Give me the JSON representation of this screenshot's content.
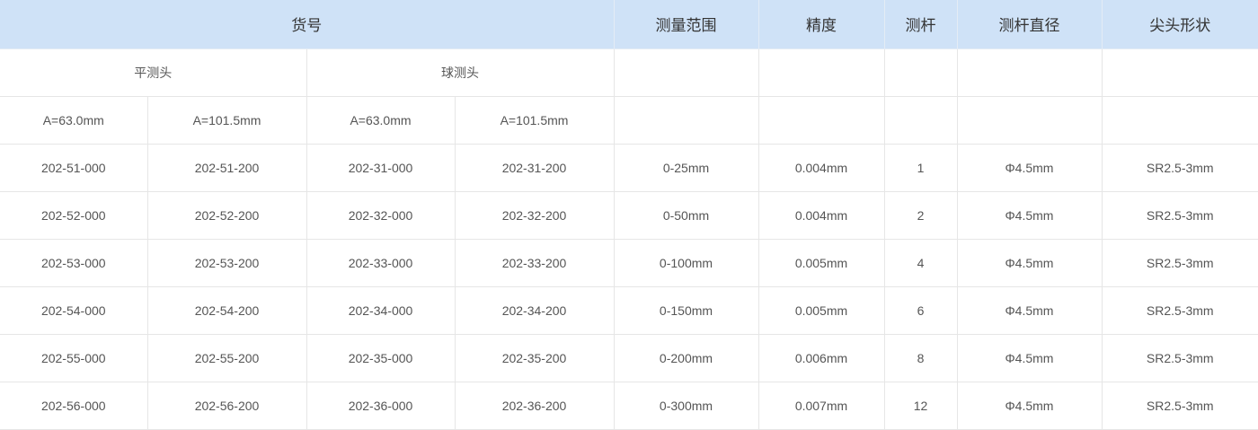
{
  "header": [
    "货号",
    "测量范围",
    "精度",
    "测杆",
    "测杆直径",
    "尖头形状"
  ],
  "subheader": {
    "flat_head": "平测头",
    "ball_head": "球测头"
  },
  "length_labels": [
    "A=63.0mm",
    "A=101.5mm",
    "A=63.0mm",
    "A=101.5mm"
  ],
  "rows": [
    [
      "202-51-000",
      "202-51-200",
      "202-31-000",
      "202-31-200",
      "0-25mm",
      "0.004mm",
      "1",
      "Φ4.5mm",
      "SR2.5-3mm"
    ],
    [
      "202-52-000",
      "202-52-200",
      "202-32-000",
      "202-32-200",
      "0-50mm",
      "0.004mm",
      "2",
      "Φ4.5mm",
      "SR2.5-3mm"
    ],
    [
      "202-53-000",
      "202-53-200",
      "202-33-000",
      "202-33-200",
      "0-100mm",
      "0.005mm",
      "4",
      "Φ4.5mm",
      "SR2.5-3mm"
    ],
    [
      "202-54-000",
      "202-54-200",
      "202-34-000",
      "202-34-200",
      "0-150mm",
      "0.005mm",
      "6",
      "Φ4.5mm",
      "SR2.5-3mm"
    ],
    [
      "202-55-000",
      "202-55-200",
      "202-35-000",
      "202-35-200",
      "0-200mm",
      "0.006mm",
      "8",
      "Φ4.5mm",
      "SR2.5-3mm"
    ],
    [
      "202-56-000",
      "202-56-200",
      "202-36-000",
      "202-36-200",
      "0-300mm",
      "0.007mm",
      "12",
      "Φ4.5mm",
      "SR2.5-3mm"
    ]
  ]
}
